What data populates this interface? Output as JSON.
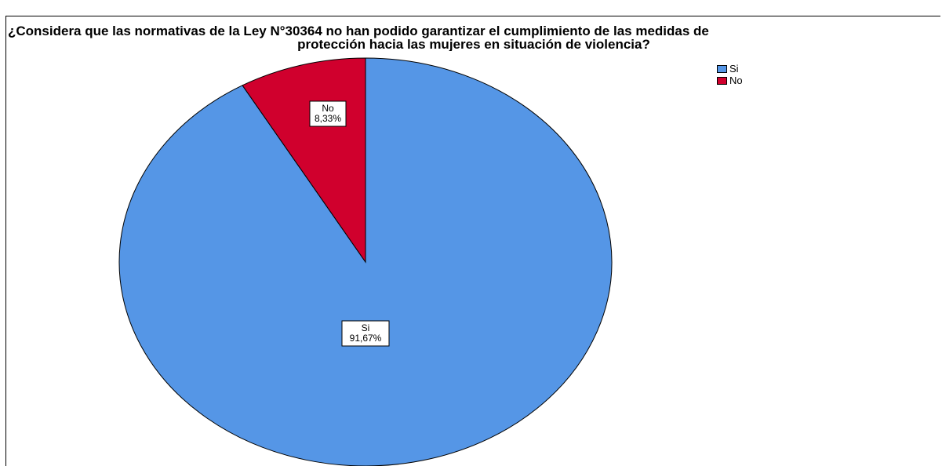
{
  "chart_data": {
    "type": "pie",
    "title_lines": [
      "¿Considera que las normativas de la Ley N°30364 no han podido garantizar el cumplimiento de las medidas de",
      "protección hacia las mujeres en situación de violencia?"
    ],
    "slices": [
      {
        "name": "Si",
        "value": 91.67,
        "label": "91,67%",
        "color": "#5596e6"
      },
      {
        "name": "No",
        "value": 8.33,
        "label": "8,33%",
        "color": "#d0002d"
      }
    ],
    "legend": {
      "position": "top-right",
      "entries": [
        "Si",
        "No"
      ]
    }
  }
}
